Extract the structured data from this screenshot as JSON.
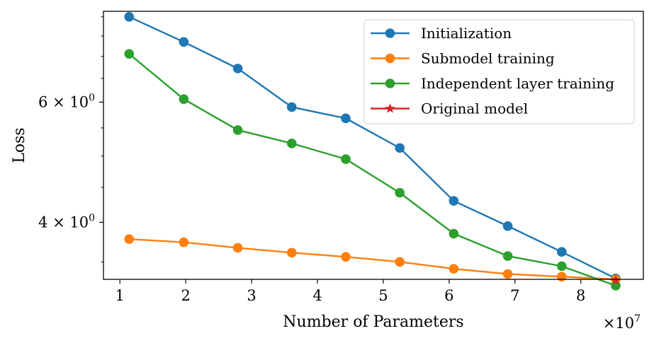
{
  "chart_data": {
    "type": "line",
    "title": "",
    "xlabel": "Number of Parameters",
    "ylabel": "Loss",
    "x_scale_label": "×10",
    "x_scale_exponent": "7",
    "yscale": "log",
    "xlim": [
      0.75,
      8.95
    ],
    "ylim": [
      3.3,
      8.15
    ],
    "xticks": [
      1,
      2,
      3,
      4,
      5,
      6,
      7,
      8
    ],
    "xtick_labels": [
      "1",
      "2",
      "3",
      "4",
      "5",
      "6",
      "7",
      "8"
    ],
    "yticks_major": [
      {
        "value": 6,
        "base": "6 × 10",
        "exp": "0"
      },
      {
        "value": 4,
        "base": "4 × 10",
        "exp": "0"
      }
    ],
    "yticks_minor": [
      3.5,
      4.5,
      5,
      5.5,
      6.5,
      7,
      7.5,
      8
    ],
    "x": [
      1.14,
      1.97,
      2.79,
      3.61,
      4.43,
      5.25,
      6.07,
      6.89,
      7.71,
      8.53
    ],
    "series": [
      {
        "name": "Initialization",
        "color": "#1f77b4",
        "marker": "circle",
        "values": [
          8.0,
          7.35,
          6.72,
          5.9,
          5.68,
          5.14,
          4.3,
          3.95,
          3.62,
          3.31
        ]
      },
      {
        "name": "Submodel training",
        "color": "#ff7f0e",
        "marker": "circle",
        "values": [
          3.78,
          3.74,
          3.67,
          3.61,
          3.56,
          3.5,
          3.42,
          3.36,
          3.33,
          3.3
        ]
      },
      {
        "name": "Independent layer training",
        "color": "#2ca02c",
        "marker": "circle",
        "values": [
          7.06,
          6.06,
          5.46,
          5.22,
          4.95,
          4.42,
          3.85,
          3.57,
          3.45,
          3.23
        ]
      },
      {
        "name": "Original model",
        "color": "#d62728",
        "marker": "star",
        "x": [
          8.53
        ],
        "values": [
          3.29
        ]
      }
    ],
    "legend_position": "top-right",
    "grid": false
  }
}
